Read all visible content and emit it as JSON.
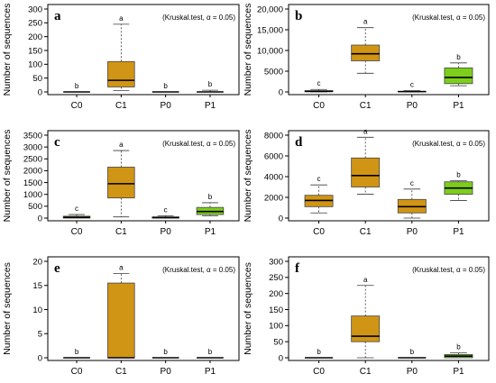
{
  "colors": {
    "control": "#d09514",
    "treated": "#7dce1b",
    "frame": "#000000",
    "whisker": "#3a3a3a"
  },
  "chart_data": [
    {
      "panel": "a",
      "type": "box",
      "ylabel": "Number of sequences",
      "note": "(Kruskal.test, α = 0.05)",
      "ylim": [
        0,
        300
      ],
      "yticks": [
        0,
        50,
        100,
        150,
        200,
        250,
        300
      ],
      "ytick_labels": [
        "0",
        "50",
        "100",
        "150",
        "200",
        "250",
        "300"
      ],
      "categories": [
        "C0",
        "C1",
        "P0",
        "P1"
      ],
      "boxes": [
        {
          "category": "C0",
          "min": 0,
          "q1": 0,
          "median": 0,
          "q3": 0,
          "max": 0,
          "sig": "b",
          "fill": "control"
        },
        {
          "category": "C1",
          "min": 5,
          "q1": 18,
          "median": 42,
          "q3": 110,
          "max": 245,
          "sig": "a",
          "fill": "control"
        },
        {
          "category": "P0",
          "min": 0,
          "q1": 0,
          "median": 0,
          "q3": 0,
          "max": 0,
          "sig": "b",
          "fill": "control"
        },
        {
          "category": "P1",
          "min": 0,
          "q1": 0,
          "median": 0,
          "q3": 0,
          "max": 6,
          "sig": "b",
          "fill": "treated"
        }
      ]
    },
    {
      "panel": "b",
      "type": "box",
      "ylabel": "Number of sequences",
      "note": "(Kruskal.test, α = 0.05)",
      "ylim": [
        0,
        20000
      ],
      "yticks": [
        0,
        5000,
        10000,
        15000,
        20000
      ],
      "ytick_labels": [
        "0",
        "5000",
        "10,000",
        "15,000",
        "20,000"
      ],
      "categories": [
        "C0",
        "C1",
        "P0",
        "P1"
      ],
      "boxes": [
        {
          "category": "C0",
          "min": 0,
          "q1": 50,
          "median": 150,
          "q3": 300,
          "max": 600,
          "sig": "c",
          "fill": "control"
        },
        {
          "category": "C1",
          "min": 4500,
          "q1": 7500,
          "median": 9200,
          "q3": 11300,
          "max": 15500,
          "sig": "a",
          "fill": "control"
        },
        {
          "category": "P0",
          "min": 0,
          "q1": 20,
          "median": 80,
          "q3": 150,
          "max": 300,
          "sig": "c",
          "fill": "control"
        },
        {
          "category": "P1",
          "min": 1500,
          "q1": 2000,
          "median": 3500,
          "q3": 5800,
          "max": 7000,
          "sig": "b",
          "fill": "treated"
        }
      ]
    },
    {
      "panel": "c",
      "type": "box",
      "ylabel": "Number of sequences",
      "note": "(Kruskal.test, α = 0.05)",
      "ylim": [
        0,
        3500
      ],
      "yticks": [
        0,
        500,
        1000,
        1500,
        2000,
        2500,
        3000,
        3500
      ],
      "ytick_labels": [
        "0",
        "500",
        "1000",
        "1500",
        "2000",
        "2500",
        "3000",
        "3500"
      ],
      "categories": [
        "C0",
        "C1",
        "P0",
        "P1"
      ],
      "boxes": [
        {
          "category": "C0",
          "min": 0,
          "q1": 0,
          "median": 30,
          "q3": 80,
          "max": 150,
          "sig": "c",
          "fill": "control"
        },
        {
          "category": "C1",
          "min": 50,
          "q1": 850,
          "median": 1450,
          "q3": 2150,
          "max": 2850,
          "sig": "a",
          "fill": "control"
        },
        {
          "category": "P0",
          "min": 0,
          "q1": 0,
          "median": 20,
          "q3": 50,
          "max": 100,
          "sig": "c",
          "fill": "control"
        },
        {
          "category": "P1",
          "min": 100,
          "q1": 150,
          "median": 280,
          "q3": 450,
          "max": 650,
          "sig": "b",
          "fill": "treated"
        }
      ]
    },
    {
      "panel": "d",
      "type": "box",
      "ylabel": "Number of sequences",
      "note": "(Kruskal.test, α = 0.05)",
      "ylim": [
        0,
        8000
      ],
      "yticks": [
        0,
        2000,
        4000,
        6000,
        8000
      ],
      "ytick_labels": [
        "0",
        "2000",
        "4000",
        "6000",
        "8000"
      ],
      "categories": [
        "C0",
        "C1",
        "P0",
        "P1"
      ],
      "boxes": [
        {
          "category": "C0",
          "min": 500,
          "q1": 1100,
          "median": 1700,
          "q3": 2200,
          "max": 3200,
          "sig": "c",
          "fill": "control"
        },
        {
          "category": "C1",
          "min": 2300,
          "q1": 3000,
          "median": 4100,
          "q3": 5800,
          "max": 7800,
          "sig": "a",
          "fill": "control"
        },
        {
          "category": "P0",
          "min": 0,
          "q1": 500,
          "median": 1100,
          "q3": 1800,
          "max": 2800,
          "sig": "c",
          "fill": "control"
        },
        {
          "category": "P1",
          "min": 1700,
          "q1": 2300,
          "median": 2900,
          "q3": 3500,
          "max": 3600,
          "sig": "b",
          "fill": "treated"
        }
      ]
    },
    {
      "panel": "e",
      "type": "box",
      "ylabel": "Number of sequences",
      "note": "(Kruskal.test, α = 0.05)",
      "ylim": [
        0,
        20
      ],
      "yticks": [
        0,
        5,
        10,
        15,
        20
      ],
      "ytick_labels": [
        "0",
        "5",
        "10",
        "15",
        "20"
      ],
      "categories": [
        "C0",
        "C1",
        "P0",
        "P1"
      ],
      "boxes": [
        {
          "category": "C0",
          "min": 0,
          "q1": 0,
          "median": 0,
          "q3": 0,
          "max": 0,
          "sig": "b",
          "fill": "control"
        },
        {
          "category": "C1",
          "min": 0,
          "q1": 0,
          "median": 0,
          "q3": 15.5,
          "max": 17.5,
          "sig": "a",
          "fill": "control"
        },
        {
          "category": "P0",
          "min": 0,
          "q1": 0,
          "median": 0,
          "q3": 0,
          "max": 0,
          "sig": "b",
          "fill": "control"
        },
        {
          "category": "P1",
          "min": 0,
          "q1": 0,
          "median": 0,
          "q3": 0,
          "max": 0,
          "sig": "b",
          "fill": "treated"
        }
      ]
    },
    {
      "panel": "f",
      "type": "box",
      "ylabel": "Number of sequences",
      "note": "(Kruskal.test, α = 0.05)",
      "ylim": [
        0,
        300
      ],
      "yticks": [
        0,
        50,
        100,
        150,
        200,
        250,
        300
      ],
      "ytick_labels": [
        "0",
        "50",
        "100",
        "150",
        "200",
        "250",
        "300"
      ],
      "categories": [
        "C0",
        "C1",
        "P0",
        "P1"
      ],
      "boxes": [
        {
          "category": "C0",
          "min": 0,
          "q1": 0,
          "median": 0,
          "q3": 0,
          "max": 0,
          "sig": "b",
          "fill": "control"
        },
        {
          "category": "C1",
          "min": 0,
          "q1": 50,
          "median": 67,
          "q3": 130,
          "max": 225,
          "sig": "a",
          "fill": "control"
        },
        {
          "category": "P0",
          "min": 0,
          "q1": 0,
          "median": 0,
          "q3": 0,
          "max": 0,
          "sig": "b",
          "fill": "control"
        },
        {
          "category": "P1",
          "min": 0,
          "q1": 0,
          "median": 5,
          "q3": 10,
          "max": 15,
          "sig": "b",
          "fill": "treated"
        }
      ]
    }
  ]
}
